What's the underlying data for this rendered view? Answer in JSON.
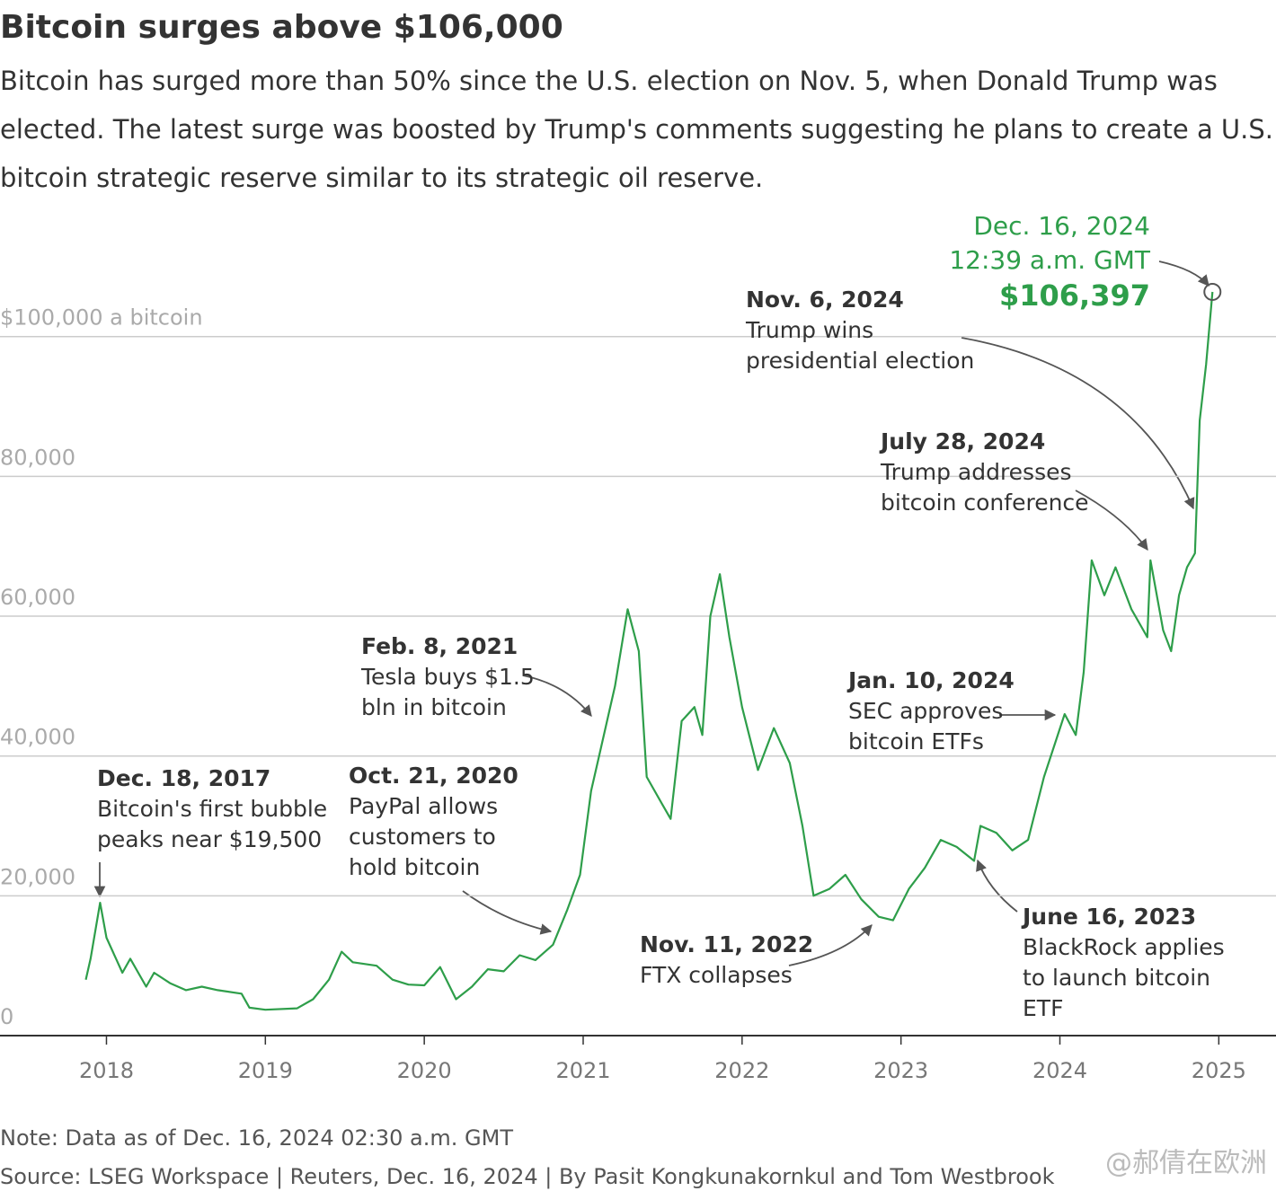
{
  "chart_data": {
    "type": "line",
    "title": "Bitcoin surges above $106,000",
    "subtitle": [
      "Bitcoin has surged more than 50% since the U.S. election on Nov. 5, when Donald Trump was",
      "elected. The latest surge was boosted by Trump's comments suggesting he plans to create a U.S.",
      "bitcoin strategic reserve similar to its strategic oil reserve."
    ],
    "x": [
      2017.87,
      2017.9,
      2017.96,
      2018.0,
      2018.1,
      2018.15,
      2018.25,
      2018.3,
      2018.4,
      2018.5,
      2018.6,
      2018.7,
      2018.85,
      2018.9,
      2019.0,
      2019.2,
      2019.3,
      2019.4,
      2019.48,
      2019.55,
      2019.7,
      2019.8,
      2019.9,
      2020.0,
      2020.1,
      2020.2,
      2020.3,
      2020.4,
      2020.5,
      2020.6,
      2020.7,
      2020.81,
      2020.9,
      2020.98,
      2021.05,
      2021.1,
      2021.2,
      2021.28,
      2021.35,
      2021.4,
      2021.5,
      2021.55,
      2021.62,
      2021.7,
      2021.75,
      2021.8,
      2021.86,
      2021.92,
      2022.0,
      2022.1,
      2022.2,
      2022.3,
      2022.38,
      2022.45,
      2022.55,
      2022.65,
      2022.75,
      2022.86,
      2022.95,
      2023.05,
      2023.15,
      2023.25,
      2023.35,
      2023.46,
      2023.5,
      2023.6,
      2023.7,
      2023.8,
      2023.9,
      2024.03,
      2024.1,
      2024.15,
      2024.2,
      2024.28,
      2024.35,
      2024.45,
      2024.55,
      2024.57,
      2024.65,
      2024.7,
      2024.75,
      2024.8,
      2024.85,
      2024.88,
      2024.92,
      2024.96
    ],
    "series": [
      {
        "name": "Bitcoin",
        "color": "#2e9e4a",
        "values": [
          8000,
          11000,
          19000,
          14000,
          9000,
          11000,
          7000,
          9000,
          7500,
          6500,
          7000,
          6500,
          6000,
          4000,
          3700,
          3900,
          5200,
          8000,
          12000,
          10500,
          10000,
          8000,
          7300,
          7200,
          9800,
          5200,
          7000,
          9500,
          9200,
          11500,
          10800,
          13000,
          18000,
          23000,
          35000,
          40000,
          50000,
          61000,
          55000,
          37000,
          33000,
          31000,
          45000,
          47000,
          43000,
          60000,
          66000,
          57000,
          47000,
          38000,
          44000,
          39000,
          30000,
          20000,
          21000,
          23000,
          19500,
          17000,
          16500,
          21000,
          24000,
          28000,
          27000,
          25000,
          30000,
          29000,
          26500,
          28000,
          37000,
          46000,
          43000,
          52000,
          68000,
          63000,
          67000,
          61000,
          57000,
          68000,
          58000,
          55000,
          63000,
          67000,
          69000,
          88000,
          96000,
          106397
        ]
      }
    ],
    "xlim": [
      2017.33,
      2025.36
    ],
    "xticks": [
      2018,
      2019,
      2020,
      2021,
      2022,
      2023,
      2024,
      2025
    ],
    "ylim": [
      0,
      115000
    ],
    "yticks": [
      0,
      {
        "value": 20000,
        "label": "20,000"
      },
      {
        "value": 40000,
        "label": "40,000"
      },
      {
        "value": 60000,
        "label": "60,000"
      },
      {
        "value": 80000,
        "label": "80,000"
      },
      {
        "value": 100000,
        "label": "$100,000 a bitcoin"
      }
    ],
    "grid": true,
    "annotations": [
      {
        "date": "Dec. 18, 2017",
        "text": [
          "Bitcoin's first bubble",
          "peaks near $19,500"
        ]
      },
      {
        "date": "Oct. 21, 2020",
        "text": [
          "PayPal allows",
          "customers to",
          "hold bitcoin"
        ]
      },
      {
        "date": "Feb. 8, 2021",
        "text": [
          "Tesla buys $1.5",
          "bln in bitcoin"
        ]
      },
      {
        "date": "Nov. 11, 2022",
        "text": [
          "FTX collapses"
        ]
      },
      {
        "date": "June 16, 2023",
        "text": [
          "BlackRock applies",
          "to launch bitcoin",
          "ETF"
        ]
      },
      {
        "date": "Jan. 10, 2024",
        "text": [
          "SEC approves",
          "bitcoin ETFs"
        ]
      },
      {
        "date": "July 28, 2024",
        "text": [
          "Trump addresses",
          "bitcoin conference"
        ]
      },
      {
        "date": "Nov. 6, 2024",
        "text": [
          "Trump wins",
          "presidential election"
        ]
      }
    ],
    "latest": {
      "date": "Dec. 16, 2024",
      "time": "12:39 a.m. GMT",
      "price": "$106,397"
    },
    "note": "Note: Data as of Dec. 16, 2024 02:30 a.m. GMT",
    "source": "Source: LSEG Workspace | Reuters, Dec. 16, 2024 | By Pasit Kongkunakornkul and Tom Westbrook",
    "watermark": "@郝倩在欧洲"
  }
}
